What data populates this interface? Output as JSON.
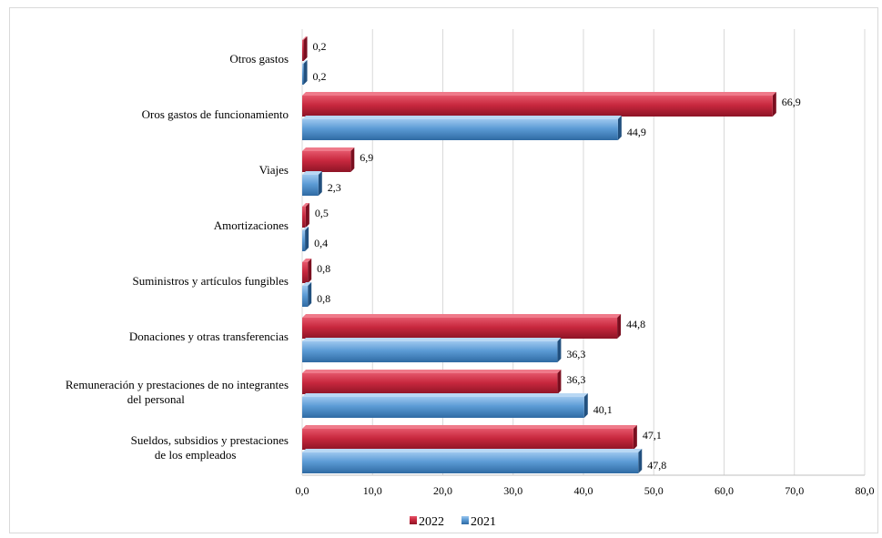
{
  "chart_data": {
    "type": "bar",
    "orientation": "horizontal",
    "categories": [
      "Otros gastos",
      "Oros gastos de funcionamiento",
      "Viajes",
      "Amortizaciones",
      "Suministros  y artículos  fungibles",
      "Donaciones  y otras transferencias",
      "Remuneración  y prestaciones  de no integrantes del personal",
      "Sueldos, subsidios y prestaciones de los empleados"
    ],
    "category_lines": [
      [
        "Otros gastos"
      ],
      [
        "Oros gastos de funcionamiento"
      ],
      [
        "Viajes"
      ],
      [
        "Amortizaciones"
      ],
      [
        "Suministros  y artículos  fungibles"
      ],
      [
        "Donaciones  y otras transferencias"
      ],
      [
        "Remuneración  y prestaciones  de no integrantes",
        "del personal"
      ],
      [
        "Sueldos, subsidios y prestaciones",
        "de los empleados"
      ]
    ],
    "series": [
      {
        "name": "2022",
        "color": "#c8283e",
        "values": [
          0.2,
          66.9,
          6.9,
          0.5,
          0.8,
          44.8,
          36.3,
          47.1
        ],
        "labels": [
          "0,2",
          "66,9",
          "6,9",
          "0,5",
          "0,8",
          "44,8",
          "36,3",
          "47,1"
        ]
      },
      {
        "name": "2021",
        "color": "#5b9bd5",
        "values": [
          0.2,
          44.9,
          2.3,
          0.4,
          0.8,
          36.3,
          40.1,
          47.8
        ],
        "labels": [
          "0,2",
          "44,9",
          "2,3",
          "0,4",
          "0,8",
          "36,3",
          "40,1",
          "47,8"
        ]
      }
    ],
    "xlim": [
      0,
      80
    ],
    "xticks": [
      0,
      10,
      20,
      30,
      40,
      50,
      60,
      70,
      80
    ],
    "xtick_labels": [
      "0,0",
      "10,0",
      "20,0",
      "30,0",
      "40,0",
      "50,0",
      "60,0",
      "70,0",
      "80,0"
    ],
    "grid": "vertical",
    "legend": {
      "position": "bottom",
      "entries": [
        "2022",
        "2021"
      ]
    }
  }
}
